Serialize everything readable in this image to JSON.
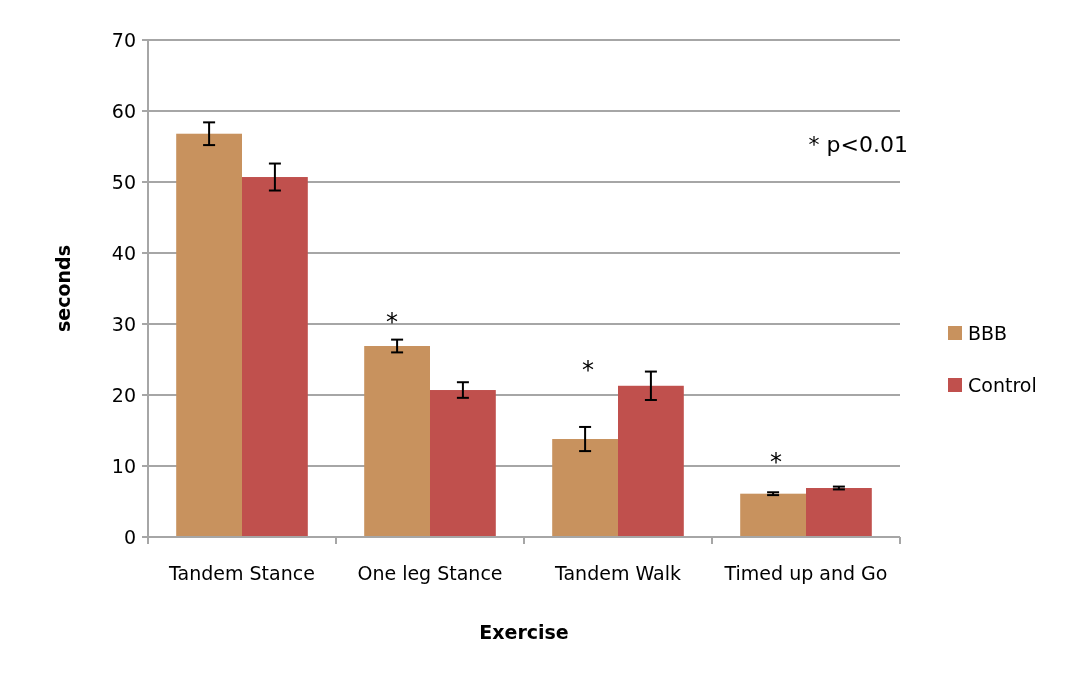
{
  "chart_data": {
    "type": "bar",
    "xlabel": "Exercise",
    "ylabel": "seconds",
    "categories": [
      "Tandem Stance",
      "One leg Stance",
      "Tandem Walk",
      "Timed up and Go"
    ],
    "series": [
      {
        "name": "BBB",
        "color": "#c8925e",
        "values": [
          56.8,
          26.9,
          13.8,
          6.1
        ],
        "errors": [
          1.6,
          0.9,
          1.7,
          0.2
        ]
      },
      {
        "name": "Control",
        "color": "#c0504d",
        "values": [
          50.7,
          20.7,
          21.3,
          6.9
        ],
        "errors": [
          1.9,
          1.1,
          2.0,
          0.2
        ]
      }
    ],
    "ylim": [
      0,
      70
    ],
    "yticks": [
      0,
      10,
      20,
      30,
      40,
      50,
      60,
      70
    ],
    "grid": "y",
    "legend": "right",
    "annotations": [
      "*",
      "*",
      "*",
      "* p<0.01"
    ]
  }
}
